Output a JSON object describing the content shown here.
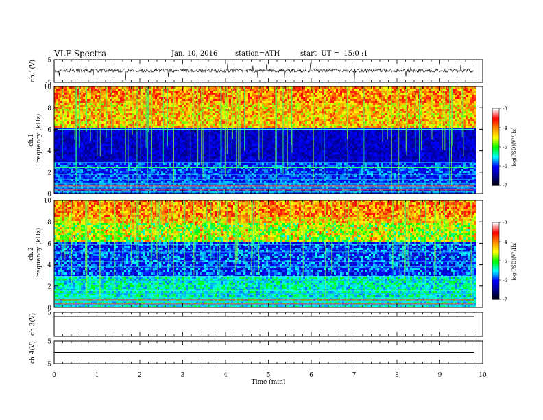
{
  "header": {
    "title": "VLF Spectra",
    "date": "Jan. 10, 2016",
    "station": "station=ATH",
    "start": "start  UT =  15:0 :1"
  },
  "chart_data": [
    {
      "type": "line",
      "panel": "ch1",
      "ylabel": "ch.1(V)",
      "ylim": [
        -5,
        5
      ],
      "yticks": [
        "5",
        "-5"
      ],
      "baseline": 0,
      "style": "noisy waveform near 0 V with frequent negative spikes"
    },
    {
      "type": "heatmap",
      "panel": "spec1",
      "ylabel": "ch.1\nFrequency  (kHz)",
      "ylim": [
        0,
        10
      ],
      "yticks": [
        "0",
        "2",
        "4",
        "6",
        "8",
        "10"
      ],
      "colorbar": {
        "label": "log(PSD)(V²/Hz)",
        "range": [
          -7,
          -3
        ],
        "ticks": [
          "-3",
          "-4",
          "-5",
          "-6",
          "-7"
        ],
        "colors": [
          "#000000",
          "#00008b",
          "#0000ff",
          "#00ffff",
          "#00ff00",
          "#ffff00",
          "#ff8c00",
          "#ff0000",
          "#ffffff"
        ]
      }
    },
    {
      "type": "heatmap",
      "panel": "spec2",
      "ylabel": "ch.2\nFrequency  (kHz)",
      "ylim": [
        0,
        10
      ],
      "yticks": [
        "0",
        "2",
        "4",
        "6",
        "8",
        "10"
      ],
      "colorbar": {
        "label": "log(PSD)(V²/Hz)",
        "range": [
          -7,
          -3
        ],
        "ticks": [
          "-3",
          "-4",
          "-5",
          "-6",
          "-7"
        ]
      }
    },
    {
      "type": "line",
      "panel": "ch3",
      "ylabel": "ch.3(V)",
      "ylim": [
        -5,
        5
      ],
      "yticks": [
        "5"
      ],
      "style": "flat line near 5 V"
    },
    {
      "type": "line",
      "panel": "ch4",
      "ylabel": "ch.4(V)",
      "ylim": [
        -5,
        5
      ],
      "yticks": [
        "5",
        "-5"
      ],
      "style": "flat line near 0 V"
    }
  ],
  "xaxis": {
    "label": "Time  (min)",
    "xlim": [
      0,
      10
    ],
    "ticks": [
      "0",
      "1",
      "2",
      "3",
      "4",
      "5",
      "6",
      "7",
      "8",
      "9",
      "10"
    ],
    "data_end": 9.8
  }
}
